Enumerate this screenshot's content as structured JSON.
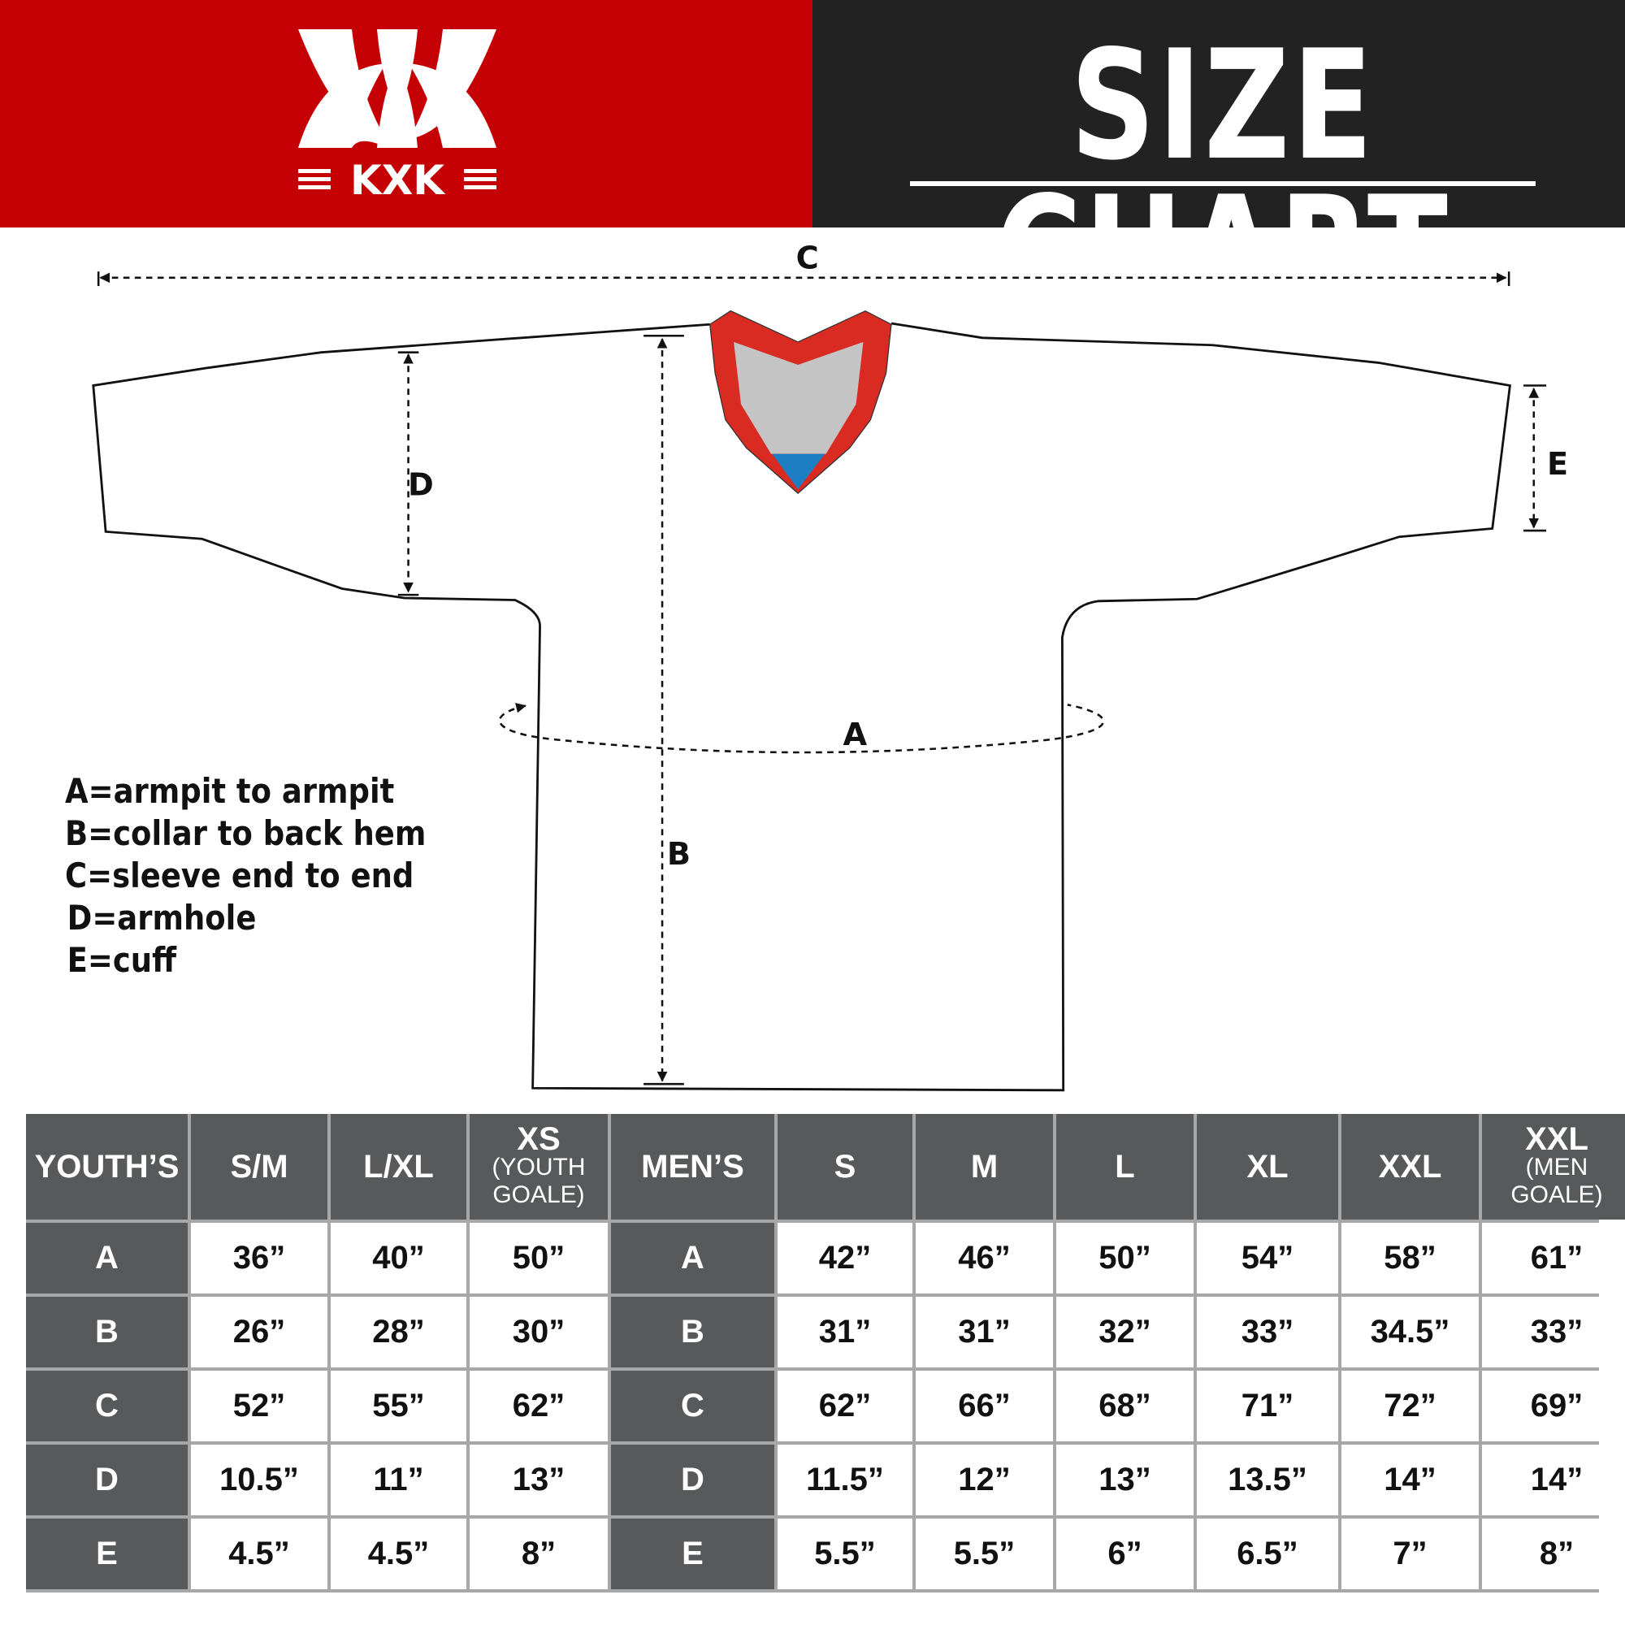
{
  "brand": {
    "logo_text": "KXK",
    "colors": {
      "red": "#c50005",
      "dark": "#222222",
      "table_header": "#58595b",
      "collar_red": "#d92b22",
      "collar_gray": "#c4c4c4",
      "collar_blue": "#1c7fc4"
    }
  },
  "header": {
    "title": "SIZE CHART"
  },
  "diagram": {
    "labels": {
      "a": "A",
      "b": "B",
      "c": "C",
      "d": "D",
      "e": "E"
    }
  },
  "legend": [
    "A=armpit to armpit",
    "B=collar to back hem",
    "C=sleeve end to end",
    "D=armhole",
    "E=cuff"
  ],
  "table": {
    "youth": {
      "header": "YOUTH’S",
      "columns": [
        {
          "size": "S/M",
          "note": ""
        },
        {
          "size": "L/XL",
          "note": ""
        },
        {
          "size": "XS",
          "note": "(YOUTH GOALE)"
        }
      ]
    },
    "men": {
      "header": "MEN’S",
      "columns": [
        {
          "size": "S",
          "note": ""
        },
        {
          "size": "M",
          "note": ""
        },
        {
          "size": "L",
          "note": ""
        },
        {
          "size": "XL",
          "note": ""
        },
        {
          "size": "XXL",
          "note": ""
        },
        {
          "size": "XXL",
          "note": "(MEN GOALE)"
        }
      ]
    },
    "rows": [
      {
        "label": "A",
        "youth": [
          "36”",
          "40”",
          "50”"
        ],
        "men": [
          "42”",
          "46”",
          "50”",
          "54”",
          "58”",
          "61”"
        ]
      },
      {
        "label": "B",
        "youth": [
          "26”",
          "28”",
          "30”"
        ],
        "men": [
          "31”",
          "31”",
          "32”",
          "33”",
          "34.5”",
          "33”"
        ]
      },
      {
        "label": "C",
        "youth": [
          "52”",
          "55”",
          "62”"
        ],
        "men": [
          "62”",
          "66”",
          "68”",
          "71”",
          "72”",
          "69”"
        ]
      },
      {
        "label": "D",
        "youth": [
          "10.5”",
          "11”",
          "13”"
        ],
        "men": [
          "11.5”",
          "12”",
          "13”",
          "13.5”",
          "14”",
          "14”"
        ]
      },
      {
        "label": "E",
        "youth": [
          "4.5”",
          "4.5”",
          "8”"
        ],
        "men": [
          "5.5”",
          "5.5”",
          "6”",
          "6.5”",
          "7”",
          "8”"
        ]
      }
    ]
  }
}
